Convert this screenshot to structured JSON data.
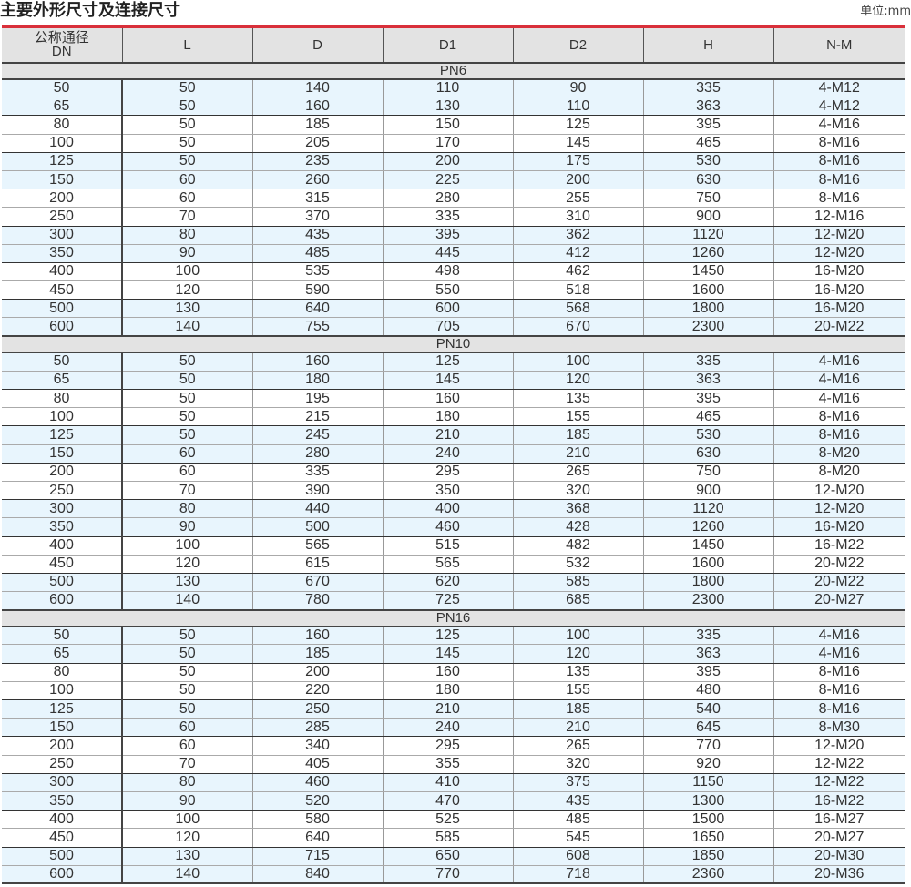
{
  "title": "主要外形尺寸及连接尺寸",
  "unit": "单位:mm",
  "colors": {
    "accent_line": "#d9303a",
    "header_bg": "#e3e3e3",
    "row_highlight": "#e8f5fd"
  },
  "columns": [
    "公称通径\nDN",
    "L",
    "D",
    "D1",
    "D2",
    "H",
    "N-M"
  ],
  "groups": [
    {
      "label": "PN6",
      "rows": [
        [
          "50",
          "50",
          "140",
          "110",
          "90",
          "335",
          "4-M12"
        ],
        [
          "65",
          "50",
          "160",
          "130",
          "110",
          "363",
          "4-M12"
        ],
        [
          "80",
          "50",
          "185",
          "150",
          "125",
          "395",
          "4-M16"
        ],
        [
          "100",
          "50",
          "205",
          "170",
          "145",
          "465",
          "8-M16"
        ],
        [
          "125",
          "50",
          "235",
          "200",
          "175",
          "530",
          "8-M16"
        ],
        [
          "150",
          "60",
          "260",
          "225",
          "200",
          "630",
          "8-M16"
        ],
        [
          "200",
          "60",
          "315",
          "280",
          "255",
          "750",
          "8-M16"
        ],
        [
          "250",
          "70",
          "370",
          "335",
          "310",
          "900",
          "12-M16"
        ],
        [
          "300",
          "80",
          "435",
          "395",
          "362",
          "1120",
          "12-M20"
        ],
        [
          "350",
          "90",
          "485",
          "445",
          "412",
          "1260",
          "12-M20"
        ],
        [
          "400",
          "100",
          "535",
          "498",
          "462",
          "1450",
          "16-M20"
        ],
        [
          "450",
          "120",
          "590",
          "550",
          "518",
          "1600",
          "16-M20"
        ],
        [
          "500",
          "130",
          "640",
          "600",
          "568",
          "1800",
          "16-M20"
        ],
        [
          "600",
          "140",
          "755",
          "705",
          "670",
          "2300",
          "20-M22"
        ]
      ]
    },
    {
      "label": "PN10",
      "rows": [
        [
          "50",
          "50",
          "160",
          "125",
          "100",
          "335",
          "4-M16"
        ],
        [
          "65",
          "50",
          "180",
          "145",
          "120",
          "363",
          "4-M16"
        ],
        [
          "80",
          "50",
          "195",
          "160",
          "135",
          "395",
          "4-M16"
        ],
        [
          "100",
          "50",
          "215",
          "180",
          "155",
          "465",
          "8-M16"
        ],
        [
          "125",
          "50",
          "245",
          "210",
          "185",
          "530",
          "8-M16"
        ],
        [
          "150",
          "60",
          "280",
          "240",
          "210",
          "630",
          "8-M20"
        ],
        [
          "200",
          "60",
          "335",
          "295",
          "265",
          "750",
          "8-M20"
        ],
        [
          "250",
          "70",
          "390",
          "350",
          "320",
          "900",
          "12-M20"
        ],
        [
          "300",
          "80",
          "440",
          "400",
          "368",
          "1120",
          "12-M20"
        ],
        [
          "350",
          "90",
          "500",
          "460",
          "428",
          "1260",
          "16-M20"
        ],
        [
          "400",
          "100",
          "565",
          "515",
          "482",
          "1450",
          "16-M22"
        ],
        [
          "450",
          "120",
          "615",
          "565",
          "532",
          "1600",
          "20-M22"
        ],
        [
          "500",
          "130",
          "670",
          "620",
          "585",
          "1800",
          "20-M22"
        ],
        [
          "600",
          "140",
          "780",
          "725",
          "685",
          "2300",
          "20-M27"
        ]
      ]
    },
    {
      "label": "PN16",
      "rows": [
        [
          "50",
          "50",
          "160",
          "125",
          "100",
          "335",
          "4-M16"
        ],
        [
          "65",
          "50",
          "185",
          "145",
          "120",
          "363",
          "4-M16"
        ],
        [
          "80",
          "50",
          "200",
          "160",
          "135",
          "395",
          "8-M16"
        ],
        [
          "100",
          "50",
          "220",
          "180",
          "155",
          "480",
          "8-M16"
        ],
        [
          "125",
          "50",
          "250",
          "210",
          "185",
          "540",
          "8-M16"
        ],
        [
          "150",
          "60",
          "285",
          "240",
          "210",
          "645",
          "8-M30"
        ],
        [
          "200",
          "60",
          "340",
          "295",
          "265",
          "770",
          "12-M20"
        ],
        [
          "250",
          "70",
          "405",
          "355",
          "320",
          "920",
          "12-M22"
        ],
        [
          "300",
          "80",
          "460",
          "410",
          "375",
          "1150",
          "12-M22"
        ],
        [
          "350",
          "90",
          "520",
          "470",
          "435",
          "1300",
          "16-M22"
        ],
        [
          "400",
          "100",
          "580",
          "525",
          "485",
          "1500",
          "16-M27"
        ],
        [
          "450",
          "120",
          "640",
          "585",
          "545",
          "1650",
          "20-M27"
        ],
        [
          "500",
          "130",
          "715",
          "650",
          "608",
          "1850",
          "20-M30"
        ],
        [
          "600",
          "140",
          "840",
          "770",
          "718",
          "2360",
          "20-M36"
        ]
      ]
    }
  ]
}
